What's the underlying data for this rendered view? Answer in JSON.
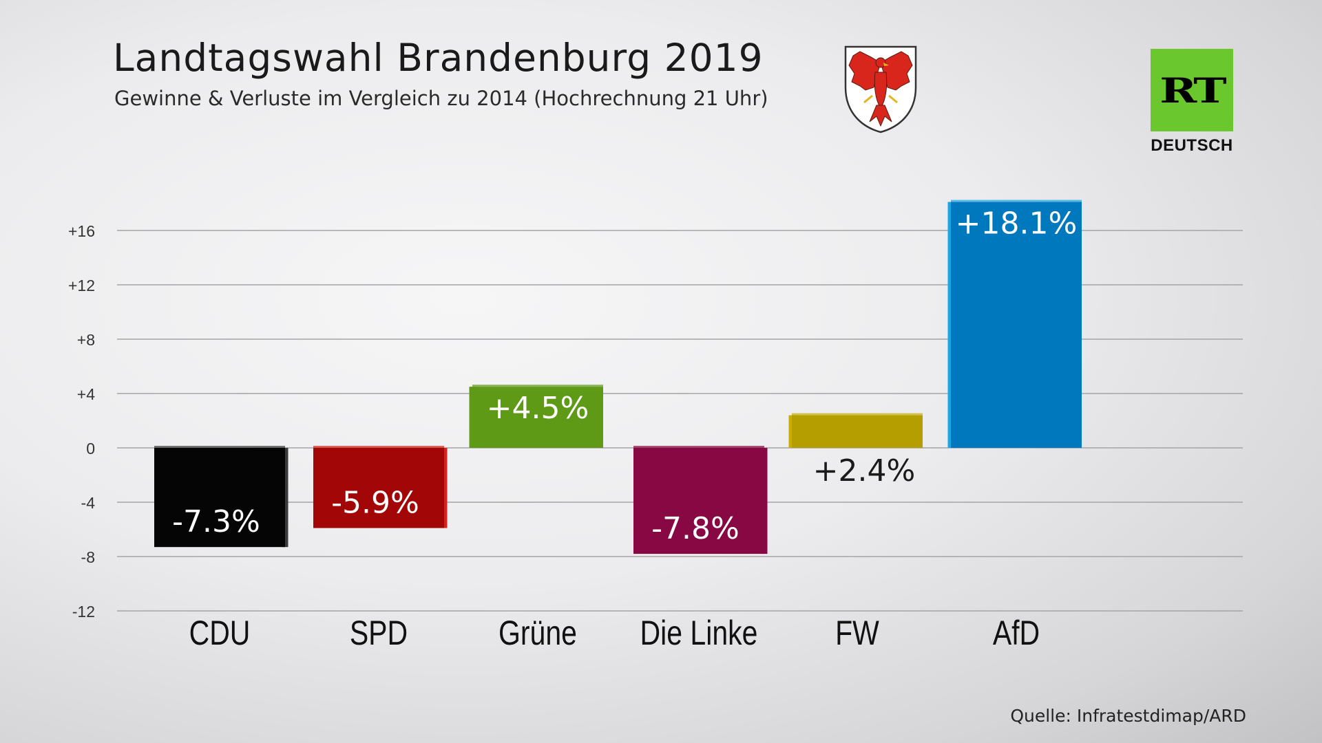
{
  "header": {
    "title": "Landtagswahl Brandenburg 2019",
    "subtitle": "Gewinne & Verluste im Vergleich zu 2014 (Hochrechnung 21 Uhr)"
  },
  "branding": {
    "logo_mark": "RT",
    "logo_sub": "DEUTSCH",
    "logo_color": "#6ac82e"
  },
  "footer": {
    "source": "Quelle: Infratestdimap/ARD"
  },
  "chart_data": {
    "type": "bar",
    "title": "Landtagswahl Brandenburg 2019",
    "subtitle": "Gewinne & Verluste im Vergleich zu 2014 (Hochrechnung 21 Uhr)",
    "categories": [
      "CDU",
      "SPD",
      "Grüne",
      "Die Linke",
      "FW",
      "AfD"
    ],
    "values": [
      -7.3,
      -5.9,
      4.5,
      -7.8,
      2.4,
      18.1
    ],
    "value_labels": [
      "-7.3%",
      "-5.9%",
      "+4.5%",
      "-7.8%",
      "+2.4%",
      "+18.1%"
    ],
    "colors": [
      "#050505",
      "#a30606",
      "#5e9a16",
      "#870842",
      "#b59e00",
      "#0078be"
    ],
    "side_colors": [
      "#3b3b3b",
      "#d5241d",
      "#5e9a16",
      "#870842",
      "#c6ad00",
      "#19a5e6"
    ],
    "yticks": [
      16,
      12,
      8,
      4,
      0,
      -4,
      -8,
      -12
    ],
    "ytick_labels": [
      "+16",
      "+12",
      "+8",
      "+4",
      "0",
      "-4",
      "-8",
      "-12"
    ],
    "ylim": [
      -12,
      16
    ],
    "grid": true,
    "xlabel": "",
    "ylabel": "",
    "legend": "none"
  }
}
